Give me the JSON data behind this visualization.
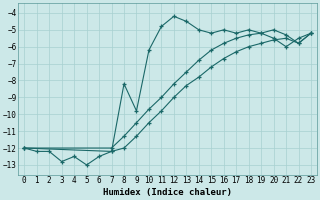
{
  "xlabel": "Humidex (Indice chaleur)",
  "bg_color": "#cce8e8",
  "grid_color": "#a8d0d0",
  "line_color": "#1a6868",
  "xlim": [
    -0.5,
    23.5
  ],
  "ylim": [
    -13.6,
    -3.4
  ],
  "yticks": [
    -13,
    -12,
    -11,
    -10,
    -9,
    -8,
    -7,
    -6,
    -5,
    -4
  ],
  "xticks": [
    0,
    1,
    2,
    3,
    4,
    5,
    6,
    7,
    8,
    9,
    10,
    11,
    12,
    13,
    14,
    15,
    16,
    17,
    18,
    19,
    20,
    21,
    22,
    23
  ],
  "curve1_x": [
    0,
    1,
    2,
    3,
    4,
    5,
    6,
    7,
    8,
    9,
    10,
    11,
    12,
    13,
    14,
    15,
    16,
    17,
    18,
    19,
    20,
    21,
    22,
    23
  ],
  "curve1_y": [
    -12.0,
    -12.2,
    -12.2,
    -12.8,
    -12.5,
    -13.0,
    -12.5,
    -12.2,
    -8.2,
    -9.8,
    -6.2,
    -4.8,
    -4.2,
    -4.5,
    -5.0,
    -5.2,
    -5.0,
    -5.2,
    -5.0,
    -5.2,
    -5.5,
    -6.0,
    -5.5,
    -5.2
  ],
  "curve2_x": [
    0,
    7,
    8,
    9,
    10,
    11,
    12,
    13,
    14,
    15,
    16,
    17,
    18,
    19,
    20,
    21,
    22,
    23
  ],
  "curve2_y": [
    -12.0,
    -12.0,
    -11.3,
    -10.5,
    -9.7,
    -9.0,
    -8.2,
    -7.5,
    -6.8,
    -6.2,
    -5.8,
    -5.5,
    -5.3,
    -5.2,
    -5.0,
    -5.3,
    -5.8,
    -5.2
  ],
  "curve3_x": [
    0,
    7,
    8,
    9,
    10,
    11,
    12,
    13,
    14,
    15,
    16,
    17,
    18,
    19,
    20,
    21,
    22,
    23
  ],
  "curve3_y": [
    -12.0,
    -12.2,
    -12.0,
    -11.3,
    -10.5,
    -9.8,
    -9.0,
    -8.3,
    -7.8,
    -7.2,
    -6.7,
    -6.3,
    -6.0,
    -5.8,
    -5.6,
    -5.5,
    -5.8,
    -5.2
  ]
}
